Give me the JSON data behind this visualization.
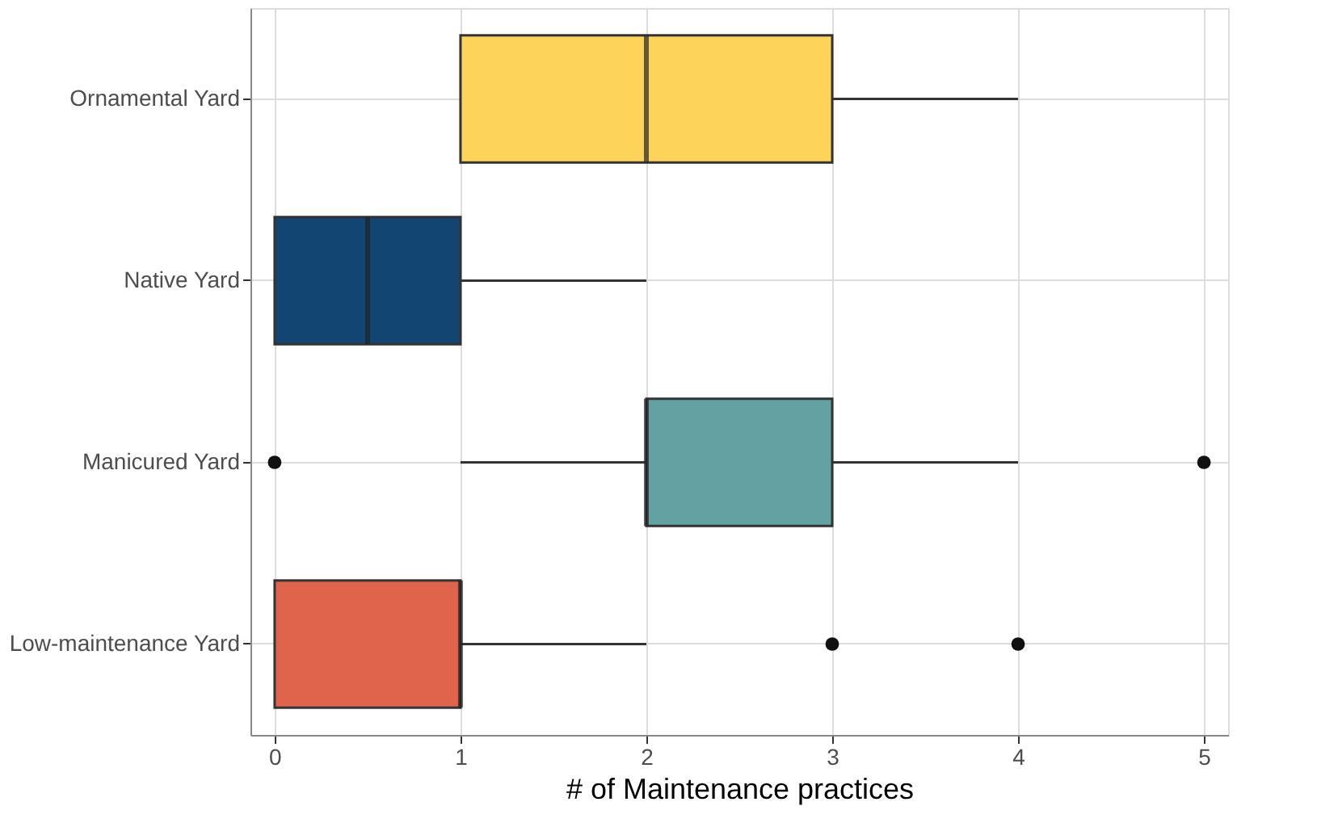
{
  "chart_data": {
    "type": "box",
    "orientation": "horizontal",
    "xlabel": "# of Maintenance practices",
    "categories": [
      "Ornamental Yard",
      "Native Yard",
      "Manicured Yard",
      "Low-maintenance Yard"
    ],
    "colors": [
      "#fdd35a",
      "#134572",
      "#64a1a2",
      "#e0644b"
    ],
    "boxes": [
      {
        "low": 1,
        "q1": 1,
        "median": 2,
        "q3": 3,
        "high": 4
      },
      {
        "low": 0,
        "q1": 0,
        "median": 0.5,
        "q3": 1,
        "high": 2
      },
      {
        "low": 1,
        "q1": 2,
        "median": 2,
        "q3": 3,
        "high": 4,
        "outliers": [
          0,
          5
        ]
      },
      {
        "low": 0,
        "q1": 0,
        "median": 1,
        "q3": 1,
        "high": 2,
        "outliers": [
          3,
          4
        ]
      }
    ],
    "xlim": [
      -0.13,
      5.13
    ],
    "xticks": [
      0,
      1,
      2,
      3,
      4,
      5
    ],
    "grid": true
  }
}
